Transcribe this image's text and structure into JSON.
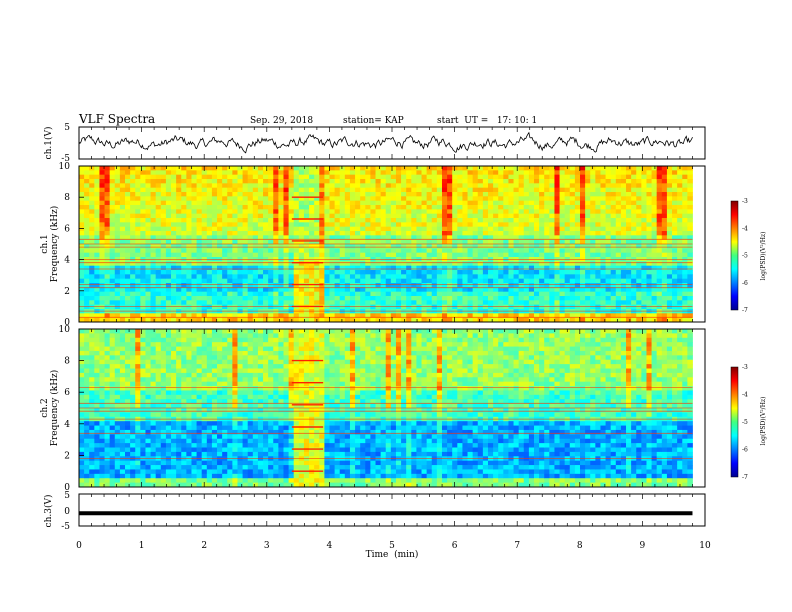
{
  "header": {
    "title": "VLF Spectra",
    "date": "Sep. 29, 2018",
    "station": "station= KAP",
    "start": "start  UT =   17: 10: 1"
  },
  "chart_data": [
    {
      "id": "ch1-waveform",
      "type": "line",
      "ylabel": "ch.1(V)",
      "ylim": [
        -5,
        5
      ],
      "yticks": [
        "5",
        "-5"
      ],
      "x_range_min": [
        0,
        9.8
      ],
      "line_color": "#000000"
    },
    {
      "id": "ch1-spectrogram",
      "type": "heatmap",
      "ylabel": "ch.1\nFrequency (kHz)",
      "ylim": [
        0,
        10
      ],
      "yticks": [
        "0",
        "2",
        "4",
        "6",
        "8",
        "10"
      ],
      "x_range_min": [
        0,
        9.8
      ],
      "colorbar": {
        "label": "log(PSD)(V²/Hz)",
        "range": [
          -7,
          -3
        ],
        "ticks": [
          "-3",
          "-4",
          "-5",
          "-6",
          "-7"
        ]
      },
      "interference_lines_khz": [
        0.3,
        0.7,
        1.0,
        2.2,
        2.4,
        3.4,
        3.8,
        4.0,
        4.8,
        5.0,
        5.3
      ],
      "anomaly_window_min": [
        3.4,
        3.9
      ]
    },
    {
      "id": "ch2-spectrogram",
      "type": "heatmap",
      "ylabel": "ch.2\nFrequency (kHz)",
      "ylim": [
        0,
        10
      ],
      "yticks": [
        "0",
        "2",
        "4",
        "6",
        "8",
        "10"
      ],
      "x_range_min": [
        0,
        9.8
      ],
      "colorbar": {
        "label": "log(PSD)(V²/Hz)",
        "range": [
          -7,
          -3
        ],
        "ticks": [
          "-3",
          "-4",
          "-5",
          "-6",
          "-7"
        ]
      },
      "interference_lines_khz": [
        1.8,
        3.4,
        4.3,
        4.8,
        5.0,
        5.3,
        6.3
      ],
      "anomaly_window_min": [
        3.4,
        3.9
      ]
    },
    {
      "id": "ch3-waveform",
      "type": "line",
      "ylabel": "ch.3(V)",
      "ylim": [
        -5,
        5
      ],
      "yticks": [
        "5",
        "0",
        "-5"
      ],
      "x_range_min": [
        0,
        9.8
      ],
      "constant_value": -1
    }
  ],
  "x_axis": {
    "label": "Time  (min)",
    "xlim": [
      0,
      10
    ],
    "ticks": [
      "0",
      "1",
      "2",
      "3",
      "4",
      "5",
      "6",
      "7",
      "8",
      "9",
      "10"
    ]
  },
  "colors": {
    "jet_low": "#00008f",
    "jet_mid": "#00ff80",
    "jet_high": "#800000",
    "interference": "#ff3000"
  }
}
